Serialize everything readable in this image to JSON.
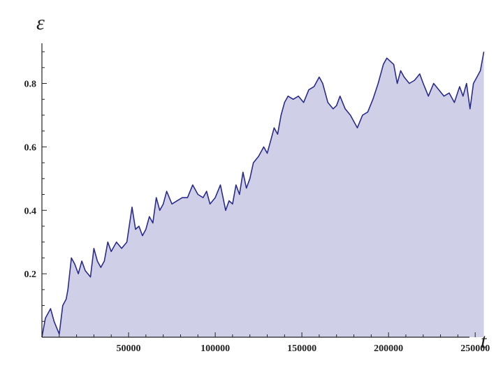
{
  "chart_data": {
    "type": "area",
    "title": "",
    "xlabel": "t",
    "ylabel": "ε",
    "xlim": [
      0,
      260000
    ],
    "ylim": [
      0,
      0.92
    ],
    "grid": false,
    "legend": "none",
    "x_ticks": [
      50000,
      100000,
      150000,
      200000,
      250000
    ],
    "x_tick_labels": [
      "50000",
      "100000",
      "150000",
      "200000",
      "250000"
    ],
    "y_ticks": [
      0.2,
      0.4,
      0.6,
      0.8
    ],
    "y_tick_labels": [
      "0.2",
      "0.4",
      "0.6",
      "0.8"
    ],
    "colors": {
      "line": "#2b2b8c",
      "fill": "#d0cfe8"
    },
    "series": [
      {
        "x": [
          0,
          2000,
          5000,
          7000,
          10000,
          12000,
          14000,
          15000,
          17000,
          19000,
          21000,
          23000,
          25000,
          28000,
          30000,
          32000,
          34000,
          36000,
          38000,
          40000,
          43000,
          46000,
          49000,
          52000,
          54000,
          56000,
          58000,
          60000,
          62000,
          64000,
          66000,
          68000,
          70000,
          72000,
          75000,
          78000,
          81000,
          84000,
          87000,
          90000,
          93000,
          95000,
          97000,
          100000,
          103000,
          106000,
          108000,
          110000,
          112000,
          114000,
          116000,
          118000,
          120000,
          122000,
          125000,
          128000,
          130000,
          132000,
          134000,
          136000,
          138000,
          140000,
          142000,
          145000,
          148000,
          151000,
          154000,
          157000,
          160000,
          162000,
          165000,
          168000,
          170000,
          172000,
          175000,
          178000,
          180000,
          182000,
          185000,
          188000,
          191000,
          194000,
          197000,
          199000,
          201000,
          203000,
          205000,
          207000,
          209000,
          212000,
          215000,
          218000,
          220000,
          223000,
          226000,
          229000,
          232000,
          235000,
          238000,
          241000,
          243000,
          245000,
          247000,
          249000,
          251000,
          253000,
          255000
        ],
        "y": [
          0.0,
          0.06,
          0.09,
          0.05,
          0.01,
          0.1,
          0.12,
          0.15,
          0.25,
          0.23,
          0.2,
          0.24,
          0.21,
          0.19,
          0.28,
          0.24,
          0.22,
          0.24,
          0.3,
          0.27,
          0.3,
          0.28,
          0.3,
          0.41,
          0.34,
          0.35,
          0.32,
          0.34,
          0.38,
          0.36,
          0.44,
          0.4,
          0.42,
          0.46,
          0.42,
          0.43,
          0.44,
          0.44,
          0.48,
          0.45,
          0.44,
          0.46,
          0.42,
          0.44,
          0.48,
          0.4,
          0.43,
          0.42,
          0.48,
          0.45,
          0.52,
          0.47,
          0.5,
          0.55,
          0.57,
          0.6,
          0.58,
          0.62,
          0.66,
          0.64,
          0.7,
          0.74,
          0.76,
          0.75,
          0.76,
          0.74,
          0.78,
          0.79,
          0.82,
          0.8,
          0.74,
          0.72,
          0.73,
          0.76,
          0.72,
          0.7,
          0.68,
          0.66,
          0.7,
          0.71,
          0.75,
          0.8,
          0.86,
          0.88,
          0.87,
          0.86,
          0.8,
          0.84,
          0.82,
          0.8,
          0.81,
          0.83,
          0.8,
          0.76,
          0.8,
          0.78,
          0.76,
          0.77,
          0.74,
          0.79,
          0.76,
          0.8,
          0.72,
          0.8,
          0.82,
          0.84,
          0.9
        ]
      }
    ]
  }
}
